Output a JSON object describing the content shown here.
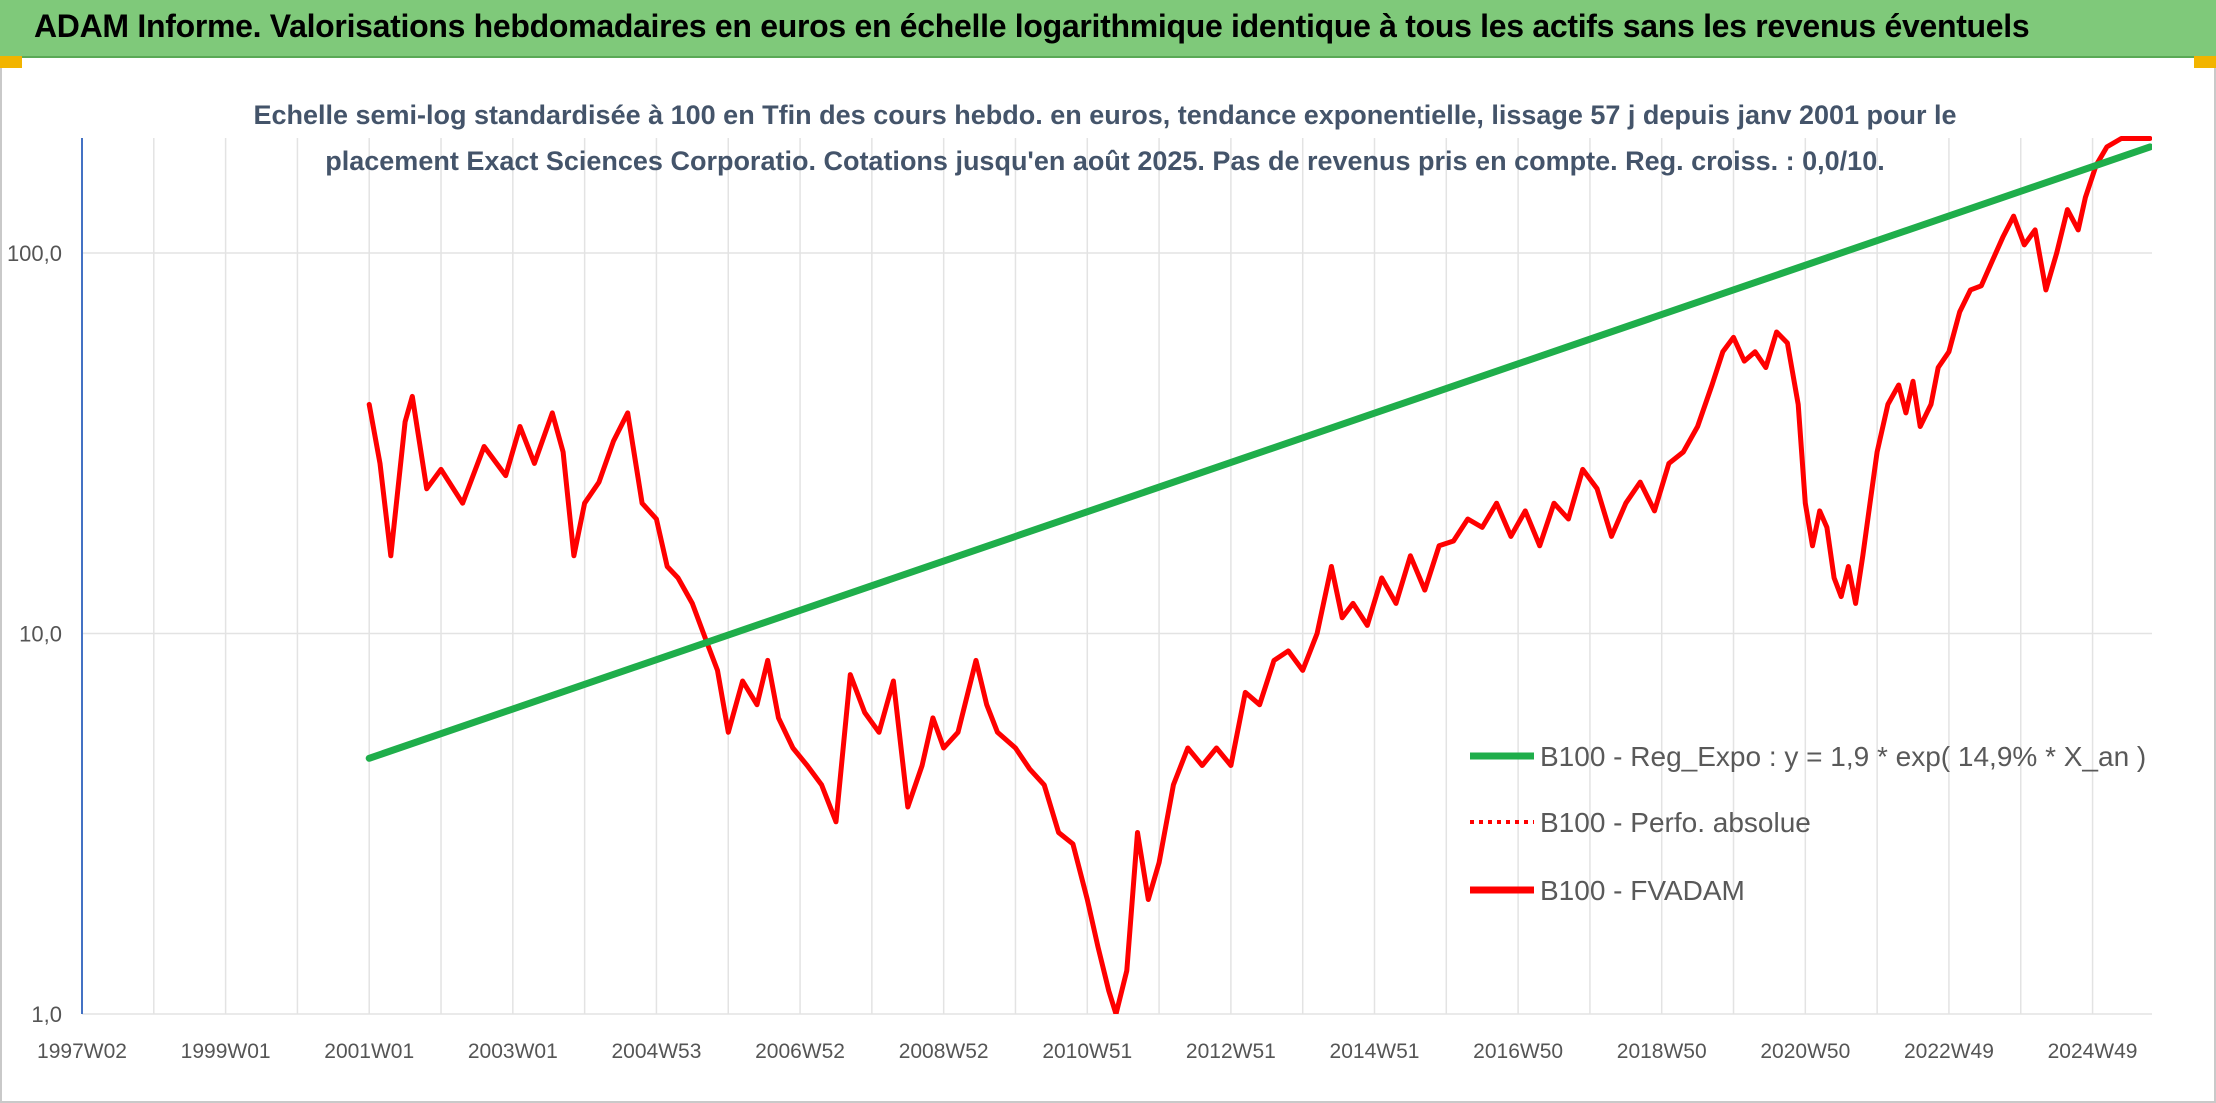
{
  "banner": {
    "title": "ADAM Informe. Valorisations hebdomadaires en euros en échelle logarithmique identique à tous les actifs sans les revenus éventuels",
    "color": "#7fc97a"
  },
  "chart_data": {
    "type": "line",
    "title_lines": [
      "Echelle semi-log standardisée à 100 en Tfin des cours hebdo. en euros, tendance exponentielle, lissage 57 j depuis janv 2001 pour le",
      "placement Exact Sciences Corporatio. Cotations jusqu'en août 2025. Pas de revenus pris en compte. Reg. croiss. : 0,0/10."
    ],
    "xlabel": "",
    "ylabel": "",
    "y_scale": "log",
    "ylim": [
      1,
      200
    ],
    "xlim": [
      1997.0,
      2025.8
    ],
    "grid": true,
    "legend_position": "bottom-right",
    "x_tick_labels": [
      {
        "label": "1997W02",
        "x": 1997.0
      },
      {
        "label": "1999W01",
        "x": 1999.0
      },
      {
        "label": "2001W01",
        "x": 2001.0
      },
      {
        "label": "2003W01",
        "x": 2003.0
      },
      {
        "label": "2004W53",
        "x": 2005.0
      },
      {
        "label": "2006W52",
        "x": 2007.0
      },
      {
        "label": "2008W52",
        "x": 2009.0
      },
      {
        "label": "2010W51",
        "x": 2011.0
      },
      {
        "label": "2012W51",
        "x": 2013.0
      },
      {
        "label": "2014W51",
        "x": 2015.0
      },
      {
        "label": "2016W50",
        "x": 2017.0
      },
      {
        "label": "2018W50",
        "x": 2019.0
      },
      {
        "label": "2020W50",
        "x": 2021.0
      },
      {
        "label": "2022W49",
        "x": 2023.0
      },
      {
        "label": "2024W49",
        "x": 2025.0
      }
    ],
    "y_ticks": [
      {
        "label": "1,0",
        "value": 1
      },
      {
        "label": "10,0",
        "value": 10
      },
      {
        "label": "100,0",
        "value": 100
      }
    ],
    "series": [
      {
        "name": "B100 - Reg_Expo : y = 1,9 * exp( 14,9% *  X_an )",
        "color": "#1fae4b",
        "style": "solid",
        "points": [
          [
            2001.0,
            4.7
          ],
          [
            2025.8,
            190
          ]
        ]
      },
      {
        "name": "B100 - Perfo. absolue",
        "color": "#ff0000",
        "style": "dotted",
        "points": []
      },
      {
        "name": "B100 - FVADAM",
        "color": "#ff0000",
        "style": "solid",
        "points": [
          [
            2001.0,
            40
          ],
          [
            2001.15,
            28
          ],
          [
            2001.3,
            16
          ],
          [
            2001.5,
            36
          ],
          [
            2001.6,
            42
          ],
          [
            2001.8,
            24
          ],
          [
            2002.0,
            27
          ],
          [
            2002.3,
            22
          ],
          [
            2002.6,
            31
          ],
          [
            2002.9,
            26
          ],
          [
            2003.1,
            35
          ],
          [
            2003.3,
            28
          ],
          [
            2003.55,
            38
          ],
          [
            2003.7,
            30
          ],
          [
            2003.85,
            16
          ],
          [
            2004.0,
            22
          ],
          [
            2004.2,
            25
          ],
          [
            2004.4,
            32
          ],
          [
            2004.6,
            38
          ],
          [
            2004.8,
            22
          ],
          [
            2005.0,
            20
          ],
          [
            2005.15,
            15
          ],
          [
            2005.3,
            14
          ],
          [
            2005.5,
            12
          ],
          [
            2005.7,
            9.5
          ],
          [
            2005.85,
            8
          ],
          [
            2006.0,
            5.5
          ],
          [
            2006.2,
            7.5
          ],
          [
            2006.4,
            6.5
          ],
          [
            2006.55,
            8.5
          ],
          [
            2006.7,
            6
          ],
          [
            2006.9,
            5
          ],
          [
            2007.1,
            4.5
          ],
          [
            2007.3,
            4
          ],
          [
            2007.5,
            3.2
          ],
          [
            2007.7,
            7.8
          ],
          [
            2007.9,
            6.2
          ],
          [
            2008.1,
            5.5
          ],
          [
            2008.3,
            7.5
          ],
          [
            2008.5,
            3.5
          ],
          [
            2008.7,
            4.5
          ],
          [
            2008.85,
            6
          ],
          [
            2009.0,
            5
          ],
          [
            2009.2,
            5.5
          ],
          [
            2009.45,
            8.5
          ],
          [
            2009.6,
            6.5
          ],
          [
            2009.75,
            5.5
          ],
          [
            2010.0,
            5
          ],
          [
            2010.2,
            4.4
          ],
          [
            2010.4,
            4
          ],
          [
            2010.6,
            3
          ],
          [
            2010.8,
            2.8
          ],
          [
            2011.0,
            2
          ],
          [
            2011.15,
            1.5
          ],
          [
            2011.3,
            1.15
          ],
          [
            2011.4,
            1.0
          ],
          [
            2011.55,
            1.3
          ],
          [
            2011.7,
            3.0
          ],
          [
            2011.85,
            2.0
          ],
          [
            2012.0,
            2.5
          ],
          [
            2012.2,
            4.0
          ],
          [
            2012.4,
            5.0
          ],
          [
            2012.6,
            4.5
          ],
          [
            2012.8,
            5.0
          ],
          [
            2013.0,
            4.5
          ],
          [
            2013.2,
            7.0
          ],
          [
            2013.4,
            6.5
          ],
          [
            2013.6,
            8.5
          ],
          [
            2013.8,
            9.0
          ],
          [
            2014.0,
            8.0
          ],
          [
            2014.2,
            10.0
          ],
          [
            2014.4,
            15.0
          ],
          [
            2014.55,
            11.0
          ],
          [
            2014.7,
            12.0
          ],
          [
            2014.9,
            10.5
          ],
          [
            2015.1,
            14.0
          ],
          [
            2015.3,
            12.0
          ],
          [
            2015.5,
            16.0
          ],
          [
            2015.7,
            13.0
          ],
          [
            2015.9,
            17.0
          ],
          [
            2016.1,
            17.5
          ],
          [
            2016.3,
            20.0
          ],
          [
            2016.5,
            19.0
          ],
          [
            2016.7,
            22.0
          ],
          [
            2016.9,
            18.0
          ],
          [
            2017.1,
            21.0
          ],
          [
            2017.3,
            17.0
          ],
          [
            2017.5,
            22.0
          ],
          [
            2017.7,
            20.0
          ],
          [
            2017.9,
            27.0
          ],
          [
            2018.1,
            24.0
          ],
          [
            2018.3,
            18.0
          ],
          [
            2018.5,
            22.0
          ],
          [
            2018.7,
            25.0
          ],
          [
            2018.9,
            21.0
          ],
          [
            2019.1,
            28.0
          ],
          [
            2019.3,
            30.0
          ],
          [
            2019.5,
            35.0
          ],
          [
            2019.7,
            45.0
          ],
          [
            2019.85,
            55.0
          ],
          [
            2020.0,
            60.0
          ],
          [
            2020.15,
            52.0
          ],
          [
            2020.3,
            55.0
          ],
          [
            2020.45,
            50.0
          ],
          [
            2020.6,
            62.0
          ],
          [
            2020.75,
            58.0
          ],
          [
            2020.9,
            40.0
          ],
          [
            2021.0,
            22.0
          ],
          [
            2021.1,
            17.0
          ],
          [
            2021.2,
            21.0
          ],
          [
            2021.3,
            19.0
          ],
          [
            2021.4,
            14.0
          ],
          [
            2021.5,
            12.5
          ],
          [
            2021.6,
            15.0
          ],
          [
            2021.7,
            12.0
          ],
          [
            2021.8,
            16.0
          ],
          [
            2021.9,
            22.0
          ],
          [
            2022.0,
            30.0
          ],
          [
            2022.15,
            40.0
          ],
          [
            2022.3,
            45.0
          ],
          [
            2022.4,
            38.0
          ],
          [
            2022.5,
            46.0
          ],
          [
            2022.6,
            35.0
          ],
          [
            2022.75,
            40.0
          ],
          [
            2022.85,
            50.0
          ],
          [
            2023.0,
            55.0
          ],
          [
            2023.15,
            70.0
          ],
          [
            2023.3,
            80.0
          ],
          [
            2023.45,
            82.0
          ],
          [
            2023.6,
            95.0
          ],
          [
            2023.75,
            110.0
          ],
          [
            2023.9,
            125.0
          ],
          [
            2024.05,
            105.0
          ],
          [
            2024.2,
            115.0
          ],
          [
            2024.35,
            80.0
          ],
          [
            2024.5,
            100.0
          ],
          [
            2024.65,
            130.0
          ],
          [
            2024.8,
            115.0
          ],
          [
            2024.9,
            140.0
          ],
          [
            2025.05,
            170.0
          ],
          [
            2025.2,
            190.0
          ],
          [
            2025.4,
            200.0
          ],
          [
            2025.8,
            200.0
          ]
        ]
      }
    ]
  }
}
